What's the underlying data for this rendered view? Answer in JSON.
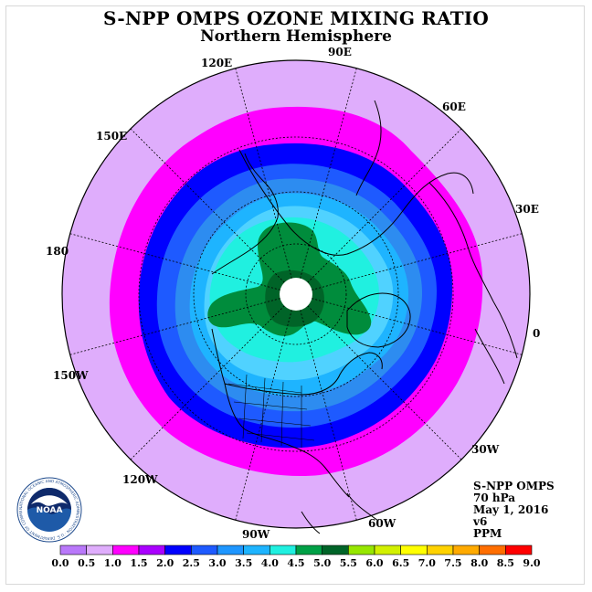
{
  "header": {
    "title": "S-NPP OMPS OZONE MIXING RATIO",
    "subtitle": "Northern Hemisphere"
  },
  "map": {
    "projection": "north-polar-stereographic",
    "longitude_labels": [
      {
        "id": "lon-90e",
        "text": "90E"
      },
      {
        "id": "lon-60e",
        "text": "60E"
      },
      {
        "id": "lon-30e",
        "text": "30E"
      },
      {
        "id": "lon-0",
        "text": "0"
      },
      {
        "id": "lon-30w",
        "text": "30W"
      },
      {
        "id": "lon-60w",
        "text": "60W"
      },
      {
        "id": "lon-90w",
        "text": "90W"
      },
      {
        "id": "lon-120w",
        "text": "120W"
      },
      {
        "id": "lon-150w",
        "text": "150W"
      },
      {
        "id": "lon-180",
        "text": "180"
      },
      {
        "id": "lon-150e",
        "text": "150E"
      },
      {
        "id": "lon-120e",
        "text": "120E"
      }
    ],
    "colors": {
      "ring_violet": "#dfadfc",
      "ring_magenta": "#ff00ff",
      "ring_purple": "#aa40ff",
      "ring_blue": "#0000ff",
      "ring_med_blue": "#1e5aff",
      "ring_blue2": "#2d8cf0",
      "ring_sky": "#1eb4ff",
      "ring_light_sky": "#50d2ff",
      "ring_cyan": "#20f0e0",
      "core_green": "#008c3c",
      "core_dark_green": "#006428",
      "pole_hole": "#ffffff"
    }
  },
  "info": {
    "line1": "S-NPP OMPS",
    "line2": "70 hPa",
    "line3": "May 1, 2016",
    "line4": "v6",
    "line5": "PPM"
  },
  "colorbar": {
    "unit": "PPM",
    "ticks": [
      "0.0",
      "0.5",
      "1.0",
      "1.5",
      "2.0",
      "2.5",
      "3.0",
      "3.5",
      "4.0",
      "4.5",
      "5.0",
      "5.5",
      "6.0",
      "6.5",
      "7.0",
      "7.5",
      "8.0",
      "8.5",
      "9.0"
    ],
    "colors": [
      "#b978fa",
      "#dfadfc",
      "#ff00ff",
      "#aa00ff",
      "#0000ff",
      "#1e5aff",
      "#1e96ff",
      "#1eb4ff",
      "#20f0e0",
      "#00a046",
      "#006428",
      "#96e600",
      "#d2f000",
      "#ffff00",
      "#ffd200",
      "#ffaa00",
      "#ff6e00",
      "#ff0000",
      "#8b5a3c"
    ]
  },
  "logo": {
    "text": "NOAA",
    "ring_text": "NATIONAL OCEANIC AND ATMOSPHERIC ADMINISTRATION · U.S. DEPARTMENT OF COMMERCE"
  }
}
